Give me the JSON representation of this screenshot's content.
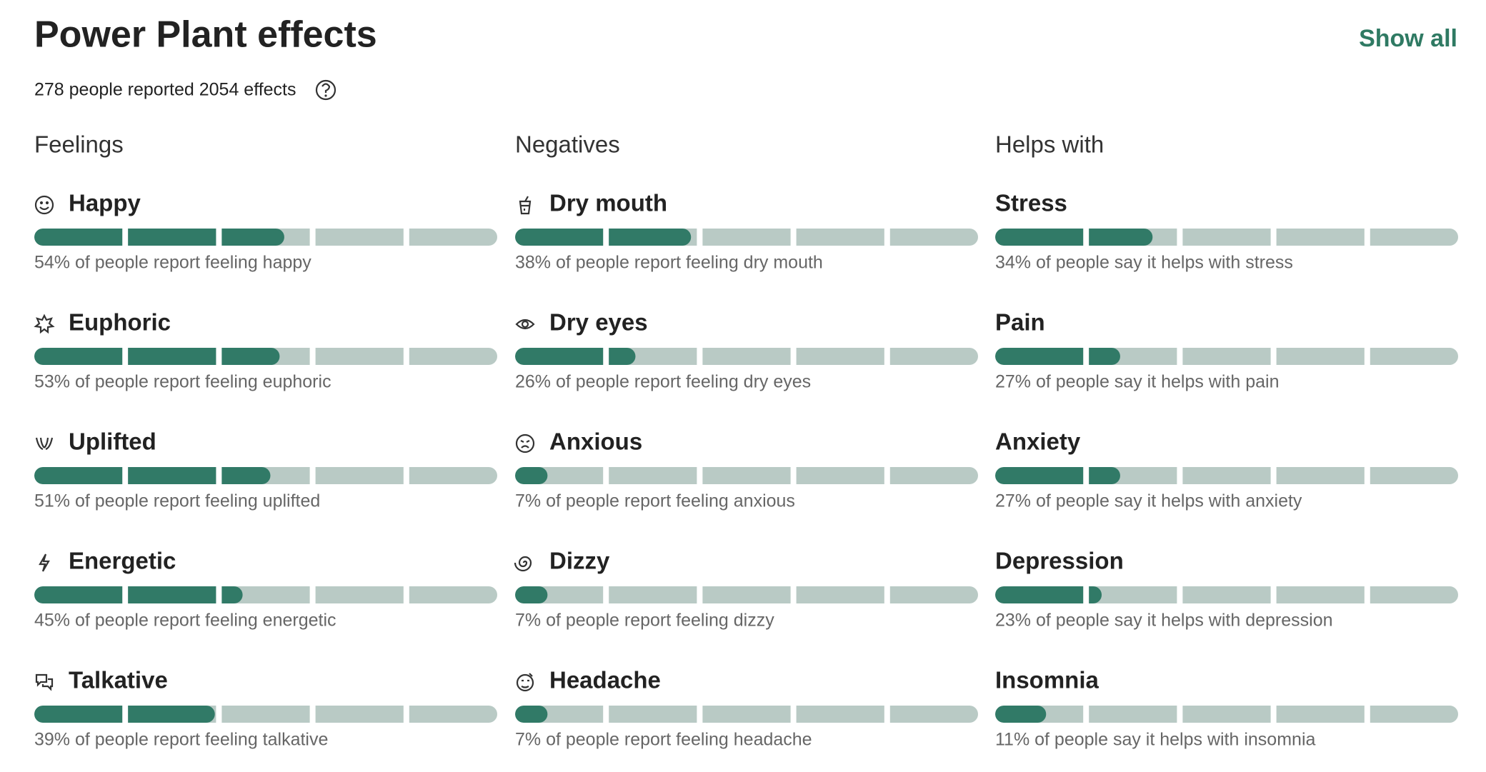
{
  "header": {
    "title": "Power Plant effects",
    "action": "Show all",
    "summary": "278 people reported 2054 effects"
  },
  "sections": [
    {
      "title": "Feelings",
      "items": [
        {
          "name": "Happy",
          "value": 54,
          "text": "54% of people report feeling happy"
        },
        {
          "name": "Euphoric",
          "value": 53,
          "text": "53% of people report feeling euphoric"
        },
        {
          "name": "Uplifted",
          "value": 51,
          "text": "51% of people report feeling uplifted"
        },
        {
          "name": "Energetic",
          "value": 45,
          "text": "45% of people report feeling energetic"
        },
        {
          "name": "Talkative",
          "value": 39,
          "text": "39% of people report feeling talkative"
        }
      ]
    },
    {
      "title": "Negatives",
      "items": [
        {
          "name": "Dry mouth",
          "value": 38,
          "text": "38% of people report feeling dry mouth"
        },
        {
          "name": "Dry eyes",
          "value": 26,
          "text": "26% of people report feeling dry eyes"
        },
        {
          "name": "Anxious",
          "value": 7,
          "text": "7% of people report feeling anxious"
        },
        {
          "name": "Dizzy",
          "value": 7,
          "text": "7% of people report feeling dizzy"
        },
        {
          "name": "Headache",
          "value": 7,
          "text": "7% of people report feeling headache"
        }
      ]
    },
    {
      "title": "Helps with",
      "items": [
        {
          "name": "Stress",
          "value": 34,
          "text": "34% of people say it helps with stress"
        },
        {
          "name": "Pain",
          "value": 27,
          "text": "27% of people say it helps with pain"
        },
        {
          "name": "Anxiety",
          "value": 27,
          "text": "27% of people say it helps with anxiety"
        },
        {
          "name": "Depression",
          "value": 23,
          "text": "23% of people say it helps with depression"
        },
        {
          "name": "Insomnia",
          "value": 11,
          "text": "11% of people say it helps with insomnia"
        }
      ]
    }
  ]
}
